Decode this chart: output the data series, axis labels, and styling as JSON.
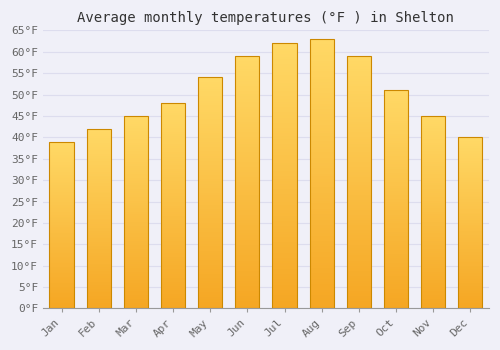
{
  "title": "Average monthly temperatures (°F ) in Shelton",
  "months": [
    "Jan",
    "Feb",
    "Mar",
    "Apr",
    "May",
    "Jun",
    "Jul",
    "Aug",
    "Sep",
    "Oct",
    "Nov",
    "Dec"
  ],
  "values": [
    39,
    42,
    45,
    48,
    54,
    59,
    62,
    63,
    59,
    51,
    45,
    40
  ],
  "bar_color_top": "#FFD966",
  "bar_color_bottom": "#F5A623",
  "bar_edge_color": "#CC8800",
  "background_color": "#F0F0F8",
  "plot_bg_color": "#F0F0F8",
  "grid_color": "#DDDDEE",
  "ylim": [
    0,
    65
  ],
  "yticks": [
    0,
    5,
    10,
    15,
    20,
    25,
    30,
    35,
    40,
    45,
    50,
    55,
    60,
    65
  ],
  "tick_label_suffix": "°F",
  "title_fontsize": 10,
  "tick_fontsize": 8,
  "font_family": "monospace",
  "bar_width": 0.65
}
